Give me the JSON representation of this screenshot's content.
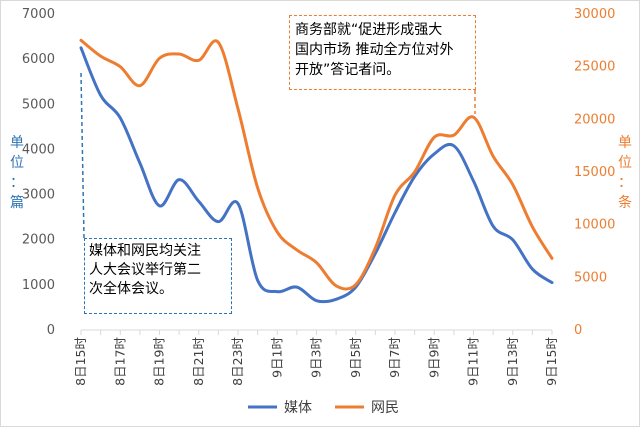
{
  "chart_data": {
    "type": "line",
    "x": [
      "8日15时",
      "8日16时",
      "8日17时",
      "8日18时",
      "8日19时",
      "8日20时",
      "8日21时",
      "8日22时",
      "8日23时",
      "9日0时",
      "9日1时",
      "9日2时",
      "9日3时",
      "9日4时",
      "9日5时",
      "9日6时",
      "9日7时",
      "9日8时",
      "9日9时",
      "9日10时",
      "9日11时",
      "9日12时",
      "9日13时",
      "9日14时",
      "9日15时"
    ],
    "x_tick_labels": [
      "8日15时",
      "",
      "8日17时",
      "",
      "8日19时",
      "",
      "8日21时",
      "",
      "8日23时",
      "",
      "9日1时",
      "",
      "9日3时",
      "",
      "9日5时",
      "",
      "9日7时",
      "",
      "9日9时",
      "",
      "9日11时",
      "",
      "9日13时",
      "",
      "9日15时"
    ],
    "series": [
      {
        "name": "媒体",
        "axis": "left",
        "color": "#4472c4",
        "values": [
          6250,
          5200,
          4700,
          3700,
          2750,
          3330,
          2850,
          2400,
          2800,
          1100,
          850,
          950,
          650,
          680,
          950,
          1700,
          2600,
          3400,
          3900,
          4080,
          3300,
          2300,
          2000,
          1350,
          1050
        ]
      },
      {
        "name": "网民",
        "axis": "right",
        "color": "#ed7d31",
        "values": [
          27500,
          26000,
          25000,
          23200,
          25800,
          26200,
          25600,
          27300,
          21000,
          13500,
          9300,
          7600,
          6400,
          4200,
          4300,
          7800,
          12800,
          15000,
          18300,
          18500,
          20200,
          16500,
          13800,
          9800,
          6800
        ]
      }
    ],
    "y_left": {
      "label": "单位：篇",
      "min": 0,
      "max": 7000,
      "ticks": [
        0,
        1000,
        2000,
        3000,
        4000,
        5000,
        6000,
        7000
      ]
    },
    "y_right": {
      "label": "单位：条",
      "min": 0,
      "max": 30000,
      "ticks": [
        0,
        5000,
        10000,
        15000,
        20000,
        25000,
        30000
      ]
    },
    "grid": false,
    "legend_position": "bottom",
    "legend": [
      "媒体",
      "网民"
    ]
  },
  "annotations": {
    "media": {
      "lines": [
        "媒体和网民均关注",
        "人大会议举行第二",
        "次全体会议。"
      ],
      "color": "#2e75b6"
    },
    "net": {
      "lines": [
        "商务部就“促进形成强大",
        "国内市场 推动全方位对外",
        "开放”答记者问。"
      ],
      "color": "#ed7d31"
    }
  },
  "colors": {
    "left_axis_text": "#2e75b6",
    "right_axis_text": "#ed7d31",
    "axis_line": "#d9d9d9"
  }
}
